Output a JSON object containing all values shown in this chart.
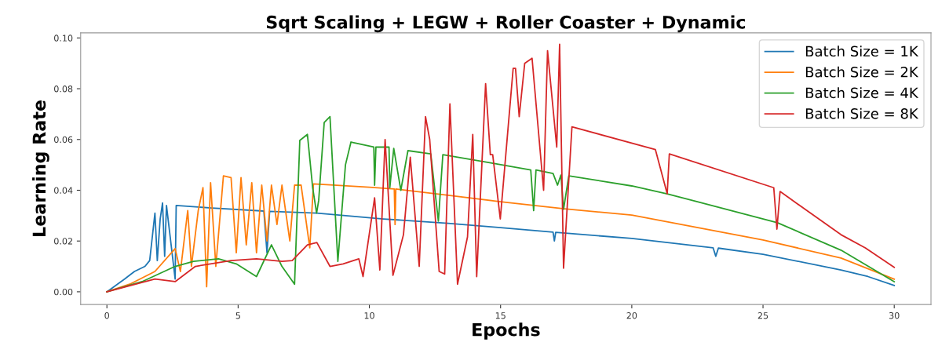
{
  "chart_data": {
    "type": "line",
    "title": "Sqrt Scaling + LEGW + Roller Coaster + Dynamic",
    "xlabel": "Epochs",
    "ylabel": "Learning Rate",
    "xlim": [
      -1,
      31.4
    ],
    "ylim": [
      -0.005,
      0.102
    ],
    "xticks": [
      0,
      5,
      10,
      15,
      20,
      25,
      30
    ],
    "yticks": [
      {
        "value": 0,
        "label": "0.00"
      },
      {
        "value": 0.02,
        "label": "0.02"
      },
      {
        "value": 0.04,
        "label": "0.04"
      },
      {
        "value": 0.06,
        "label": "0.06"
      },
      {
        "value": 0.08,
        "label": "0.08"
      },
      {
        "value": 0.1,
        "label": "0.10"
      }
    ],
    "grid": false,
    "legend": "top right",
    "marker": "none",
    "line_style": "solid",
    "series": [
      {
        "name": "Batch Size = 1K",
        "color": "#1f77b4",
        "x": [
          0,
          0.67,
          1.05,
          1.45,
          1.63,
          1.83,
          1.92,
          2.03,
          2.12,
          2.2,
          2.27,
          2.6,
          2.64,
          4,
          5.98,
          6.1,
          6.2,
          8,
          10.54,
          13,
          15,
          17,
          17.05,
          17.1,
          20,
          23.1,
          23.2,
          23.3,
          25,
          27.97,
          29,
          30
        ],
        "values": [
          0,
          0.005,
          0.008,
          0.01,
          0.0123,
          0.031,
          0.0123,
          0.0287,
          0.035,
          0.014,
          0.034,
          0.005,
          0.034,
          0.033,
          0.0318,
          0.0154,
          0.0317,
          0.031,
          0.0287,
          0.027,
          0.0253,
          0.0235,
          0.02,
          0.0234,
          0.021,
          0.0173,
          0.014,
          0.0172,
          0.0148,
          0.0086,
          0.006,
          0.0025
        ]
      },
      {
        "name": "Batch Size = 2K",
        "color": "#ff7f0e",
        "x": [
          0,
          0.87,
          1.83,
          2.6,
          2.8,
          3.08,
          3.22,
          3.48,
          3.66,
          3.8,
          3.95,
          4.15,
          4.44,
          4.73,
          4.93,
          5.11,
          5.31,
          5.52,
          5.7,
          5.9,
          6.1,
          6.27,
          6.48,
          6.67,
          6.97,
          7.15,
          7.4,
          7.73,
          7.87,
          10,
          10.95,
          10.98,
          11.01,
          13,
          15,
          17.43,
          20,
          25,
          27.97,
          30
        ],
        "values": [
          0,
          0.003,
          0.008,
          0.017,
          0.008,
          0.032,
          0.01,
          0.032,
          0.041,
          0.002,
          0.043,
          0.01,
          0.0457,
          0.045,
          0.0154,
          0.045,
          0.0185,
          0.043,
          0.0154,
          0.042,
          0.02,
          0.042,
          0.0265,
          0.042,
          0.02,
          0.042,
          0.042,
          0.0173,
          0.0425,
          0.0412,
          0.0405,
          0.0265,
          0.0405,
          0.038,
          0.0355,
          0.0327,
          0.0302,
          0.0204,
          0.0133,
          0.005
        ]
      },
      {
        "name": "Batch Size = 4K",
        "color": "#2ca02c",
        "x": [
          0,
          1.34,
          2.6,
          3.3,
          4.25,
          4.93,
          5.7,
          6.27,
          6.67,
          7.15,
          7.35,
          7.64,
          7.84,
          7.99,
          8.07,
          8.28,
          8.5,
          8.8,
          9.09,
          9.3,
          10.17,
          10.2,
          10.25,
          10.75,
          10.78,
          10.93,
          11.2,
          11.47,
          12.34,
          12.63,
          12.8,
          14.5,
          16.15,
          16.26,
          16.35,
          17.0,
          17.17,
          17.3,
          17.4,
          17.6,
          20,
          21.35,
          25.55,
          27.97,
          30
        ],
        "values": [
          0,
          0.004,
          0.01,
          0.012,
          0.013,
          0.011,
          0.006,
          0.0185,
          0.01,
          0.003,
          0.0596,
          0.062,
          0.041,
          0.031,
          0.036,
          0.0667,
          0.069,
          0.012,
          0.05,
          0.059,
          0.057,
          0.042,
          0.057,
          0.057,
          0.041,
          0.0565,
          0.04,
          0.0556,
          0.0543,
          0.0278,
          0.054,
          0.051,
          0.048,
          0.032,
          0.048,
          0.0466,
          0.042,
          0.046,
          0.0325,
          0.0457,
          0.0417,
          0.0386,
          0.0272,
          0.0164,
          0.004
        ]
      },
      {
        "name": "Batch Size = 8K",
        "color": "#d62728",
        "x": [
          0,
          1.83,
          2.6,
          3.37,
          4.73,
          5.7,
          6.67,
          7.06,
          7.64,
          8.0,
          8.5,
          9.0,
          9.6,
          9.76,
          10.2,
          10.4,
          10.6,
          10.9,
          11.3,
          11.56,
          11.9,
          12.14,
          12.3,
          12.66,
          12.87,
          13.07,
          13.36,
          13.74,
          13.94,
          14.09,
          14.43,
          14.61,
          14.7,
          14.99,
          15.48,
          15.57,
          15.71,
          15.92,
          16.2,
          16.64,
          16.79,
          17.14,
          17.25,
          17.4,
          17.72,
          20.9,
          21.35,
          21.43,
          25.41,
          25.53,
          25.65,
          27.97,
          28.9,
          30
        ],
        "values": [
          0,
          0.005,
          0.004,
          0.01,
          0.0123,
          0.013,
          0.012,
          0.0123,
          0.0185,
          0.0194,
          0.01,
          0.011,
          0.013,
          0.006,
          0.037,
          0.0086,
          0.06,
          0.0065,
          0.0225,
          0.053,
          0.01,
          0.069,
          0.06,
          0.008,
          0.007,
          0.074,
          0.003,
          0.0216,
          0.062,
          0.006,
          0.082,
          0.054,
          0.054,
          0.0287,
          0.088,
          0.088,
          0.069,
          0.09,
          0.092,
          0.04,
          0.095,
          0.057,
          0.0975,
          0.0093,
          0.065,
          0.056,
          0.0386,
          0.0543,
          0.041,
          0.0247,
          0.0395,
          0.0225,
          0.0173,
          0.0096
        ]
      }
    ]
  }
}
